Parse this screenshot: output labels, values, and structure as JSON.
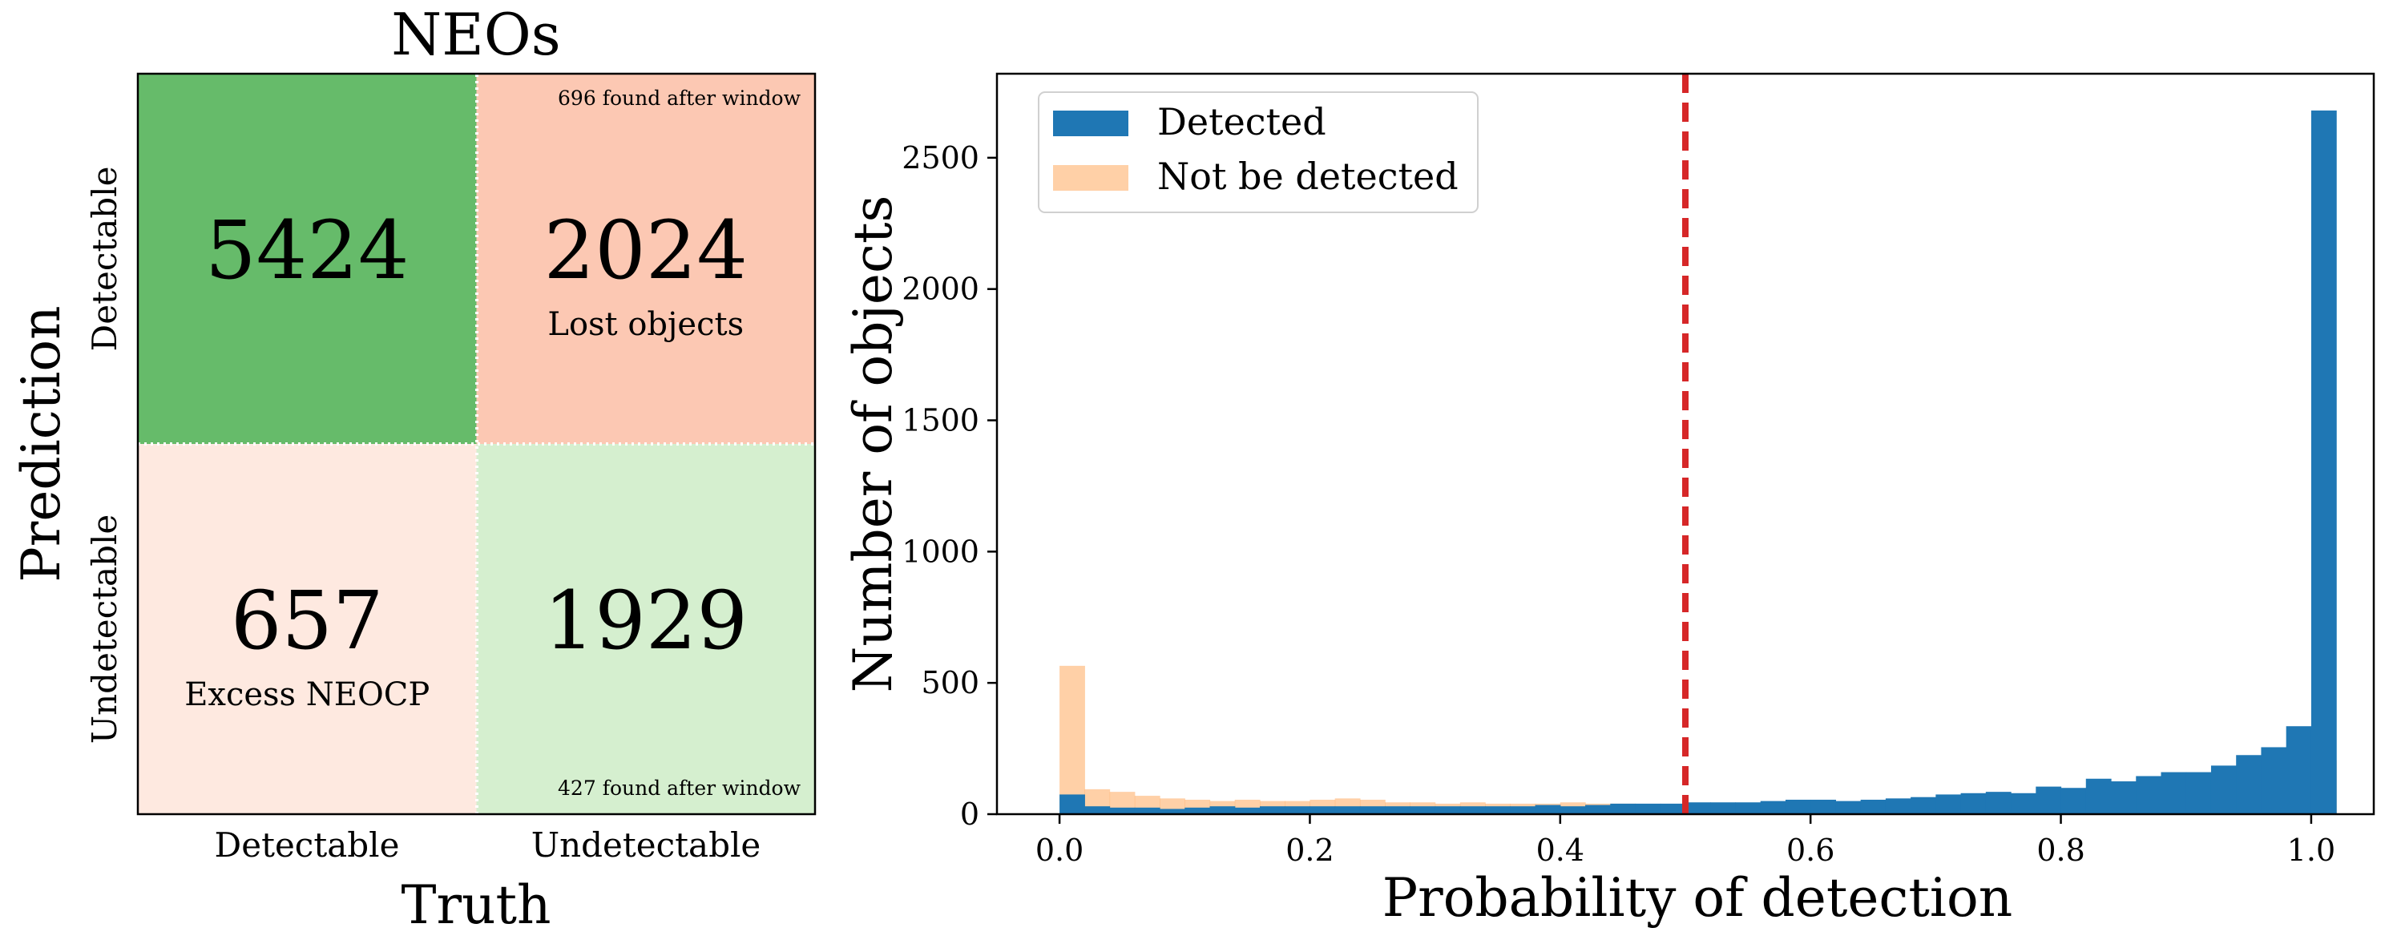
{
  "chart_data": [
    {
      "type": "heatmap",
      "title": "NEOs",
      "xlabel": "Truth",
      "ylabel": "Prediction",
      "x_categories": [
        "Detectable",
        "Undetectable"
      ],
      "y_categories": [
        "Detectable",
        "Undetectable"
      ],
      "cells": [
        {
          "row": 0,
          "col": 0,
          "value": "5424",
          "label": "",
          "note": "",
          "color": "#66bb6a"
        },
        {
          "row": 0,
          "col": 1,
          "value": "2024",
          "label": "Lost objects",
          "note": "696 found after window",
          "color": "#fcc8b3"
        },
        {
          "row": 1,
          "col": 0,
          "value": "657",
          "label": "Excess NEOCP",
          "note": "",
          "color": "#fee9e0"
        },
        {
          "row": 1,
          "col": 1,
          "value": "1929",
          "label": "",
          "note": "427 found after window",
          "color": "#d5efcf"
        }
      ]
    },
    {
      "type": "histogram",
      "xlabel": "Probability of detection",
      "ylabel": "Number of objects",
      "xlim": [
        -0.05,
        1.05
      ],
      "ylim": [
        0,
        2820
      ],
      "xticks": [
        "0.0",
        "0.2",
        "0.4",
        "0.6",
        "0.8",
        "1.0"
      ],
      "yticks": [
        "0",
        "500",
        "1000",
        "1500",
        "2000",
        "2500"
      ],
      "legend_position": "upper-left",
      "threshold": 0.5,
      "threshold_color": "#d62728",
      "bin_start": 0.0,
      "bin_width": 0.02,
      "series": [
        {
          "name": "Detected",
          "color": "#1f77b4",
          "values": [
            75,
            30,
            25,
            25,
            20,
            25,
            30,
            25,
            30,
            30,
            30,
            30,
            30,
            30,
            30,
            30,
            30,
            30,
            30,
            35,
            30,
            35,
            40,
            40,
            40,
            45,
            45,
            45,
            50,
            55,
            55,
            50,
            55,
            60,
            65,
            75,
            80,
            85,
            80,
            105,
            100,
            135,
            125,
            145,
            160,
            160,
            185,
            225,
            255,
            335,
            2680
          ]
        },
        {
          "name": "Not be detected",
          "color": "#ffb06d",
          "values": [
            565,
            95,
            85,
            70,
            60,
            55,
            50,
            55,
            50,
            50,
            55,
            60,
            55,
            45,
            45,
            40,
            45,
            40,
            40,
            40,
            45,
            40,
            40,
            35,
            35,
            40,
            35,
            35,
            35,
            35,
            45,
            35,
            35,
            45,
            40,
            45,
            45,
            55,
            60,
            65,
            75,
            80,
            80,
            80,
            85,
            90,
            95,
            100,
            105,
            135,
            205
          ]
        }
      ]
    }
  ]
}
